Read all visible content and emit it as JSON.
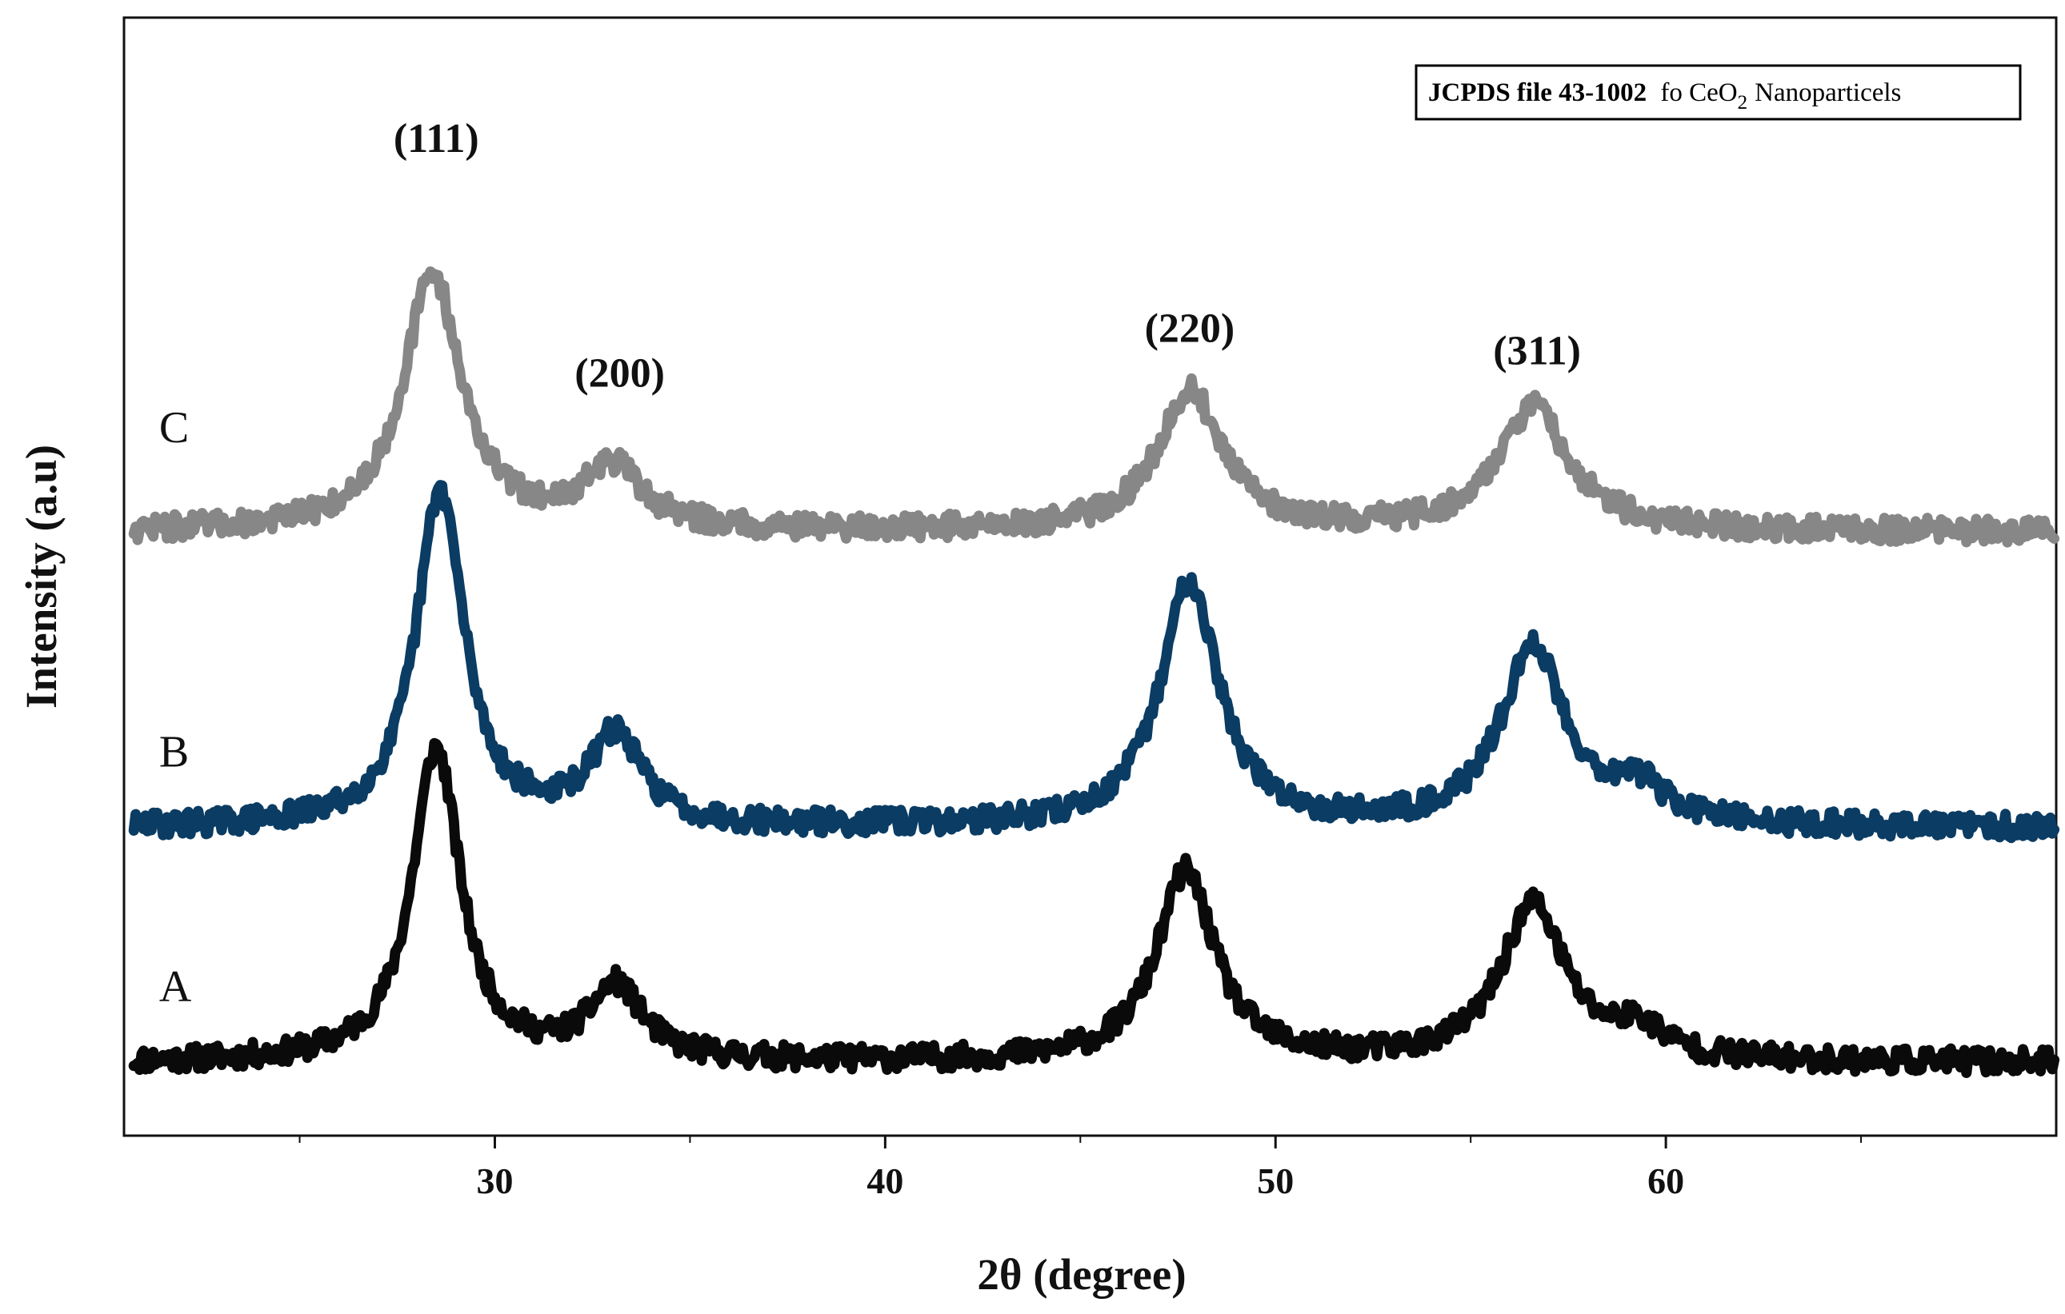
{
  "chart_data": {
    "type": "line",
    "title": "",
    "xlabel": "2θ (degree)",
    "ylabel": "Intensity (a.u)",
    "xlim": [
      20.5,
      70
    ],
    "ylim": [
      0,
      100
    ],
    "x_ticks": [
      30,
      40,
      50,
      60
    ],
    "x_tick_labels": [
      "30",
      "40",
      "50",
      "60"
    ],
    "x_minor_ticks": [
      25,
      35,
      45,
      55,
      65
    ],
    "grid": false,
    "legend": {
      "position": "top-right",
      "bold": "JCPDS file 43-1002",
      "normal": "fo CeO",
      "subscript": "2",
      "suffix": "Nanoparticels"
    },
    "peak_labels": [
      {
        "text": "(111)",
        "x": 28.5,
        "y": 88
      },
      {
        "text": "(200)",
        "x": 33.2,
        "y": 67
      },
      {
        "text": "(220)",
        "x": 47.8,
        "y": 71
      },
      {
        "text": "(311)",
        "x": 56.7,
        "y": 69
      }
    ],
    "series": [
      {
        "name": "A",
        "color": "#0a0a0a",
        "baseline": 6.5,
        "noise": 1.1,
        "seed": 11,
        "label_y": 12,
        "peaks": [
          {
            "x": 28.5,
            "height": 28,
            "width": 0.75
          },
          {
            "x": 33.1,
            "height": 6.5,
            "width": 0.8
          },
          {
            "x": 47.7,
            "height": 17,
            "width": 0.9
          },
          {
            "x": 56.6,
            "height": 14,
            "width": 1.0
          },
          {
            "x": 59.3,
            "height": 2.5,
            "width": 0.8
          }
        ]
      },
      {
        "name": "B",
        "color": "#0b3c63",
        "baseline": 27.5,
        "noise": 1.1,
        "seed": 29,
        "label_y": 33,
        "peaks": [
          {
            "x": 28.6,
            "height": 30,
            "width": 0.75
          },
          {
            "x": 33.1,
            "height": 8,
            "width": 0.8
          },
          {
            "x": 47.8,
            "height": 22,
            "width": 0.9
          },
          {
            "x": 56.6,
            "height": 16,
            "width": 1.0
          },
          {
            "x": 59.3,
            "height": 3,
            "width": 0.8
          }
        ]
      },
      {
        "name": "C",
        "color": "#878787",
        "baseline": 54,
        "noise": 1.1,
        "seed": 47,
        "label_y": 62,
        "peaks": [
          {
            "x": 28.4,
            "height": 23,
            "width": 0.9
          },
          {
            "x": 33.0,
            "height": 5.5,
            "width": 0.9
          },
          {
            "x": 47.8,
            "height": 12.5,
            "width": 1.0
          },
          {
            "x": 56.6,
            "height": 11,
            "width": 1.1
          }
        ]
      }
    ]
  }
}
